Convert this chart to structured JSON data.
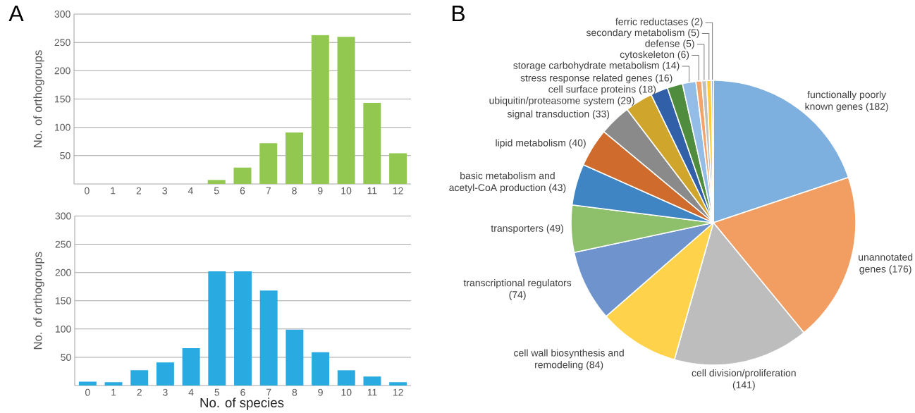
{
  "chart_data": [
    {
      "type": "bar",
      "title": "A",
      "ylabel": "No. of orthogroups",
      "categories": [
        "0",
        "1",
        "2",
        "3",
        "4",
        "5",
        "6",
        "7",
        "8",
        "9",
        "10",
        "11",
        "12"
      ],
      "values": [
        0,
        0,
        0,
        0,
        0,
        7,
        29,
        72,
        91,
        263,
        260,
        143,
        54
      ],
      "color": "#92c84f",
      "ylim": [
        0,
        300
      ],
      "yticks": [
        50,
        100,
        150,
        200,
        250,
        300
      ],
      "grid": "y"
    },
    {
      "type": "bar",
      "xlabel": "No. of species",
      "ylabel": "No. of orthogroups",
      "categories": [
        "0",
        "1",
        "2",
        "3",
        "4",
        "5",
        "6",
        "7",
        "8",
        "9",
        "10",
        "11",
        "12"
      ],
      "values": [
        7,
        6,
        27,
        41,
        66,
        202,
        202,
        168,
        99,
        59,
        27,
        16,
        6
      ],
      "color": "#29abe2",
      "ylim": [
        0,
        300
      ],
      "yticks": [
        50,
        100,
        150,
        200,
        250,
        300
      ],
      "grid": "y"
    },
    {
      "type": "pie",
      "title": "B",
      "categories": [
        "functionally poorly known genes (182)",
        "unannotated genes (176)",
        "cell division/proliferation (141)",
        "cell wall biosynthesis and remodeling (84)",
        "transcriptional regulators (74)",
        "transporters (49)",
        "basic metabolism and acetyl-CoA production (43)",
        "lipid metabolism (40)",
        "signal transduction (33)",
        "ubiquitin/proteasome system (29)",
        "cell surface proteins (18)",
        "stress response related genes (16)",
        "storage carbohydrate metabolism (14)",
        "cytoskeleton (6)",
        "defense (5)",
        "secondary metabolism (5)",
        "ferric reductases (2)"
      ],
      "values": [
        182,
        176,
        141,
        84,
        74,
        49,
        43,
        40,
        33,
        29,
        18,
        16,
        14,
        6,
        5,
        5,
        2
      ],
      "colors": [
        "#7eb0df",
        "#f29e62",
        "#bdbdbd",
        "#fed24a",
        "#6f93cd",
        "#8ec06c",
        "#3f85c4",
        "#cf6b2c",
        "#8a8a8a",
        "#cfa52c",
        "#3260a8",
        "#4f8c3d",
        "#93bde6",
        "#f4a36d",
        "#c0c0c0",
        "#ffcb3a",
        "#86a3d8"
      ]
    }
  ]
}
